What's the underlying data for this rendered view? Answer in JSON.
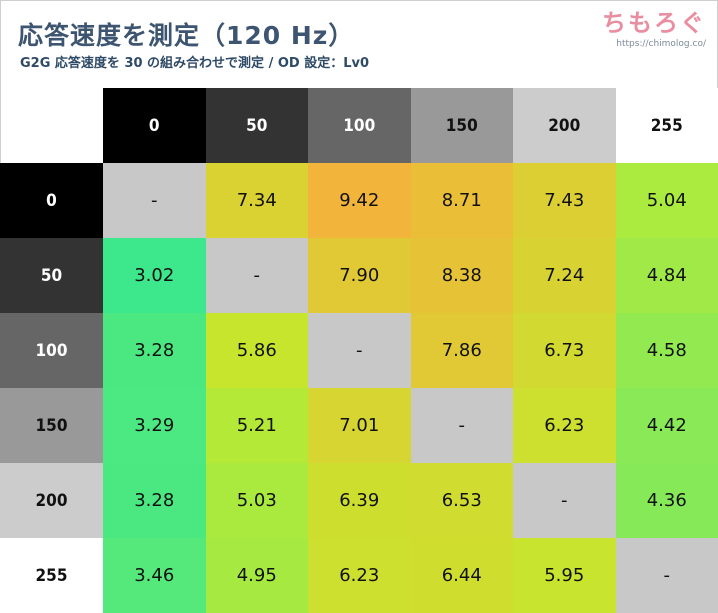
{
  "header": {
    "title": "応答速度を測定（120 Hz）",
    "subtitle": "G2G 応答速度を 30 の組み合わせで測定 / OD 設定：Lv0"
  },
  "brand": {
    "name": "ちもろぐ",
    "url": "https://chimolog.co/"
  },
  "colors": {
    "title": "#3d5570",
    "brand": "#e98ea0",
    "diagonal": "#c8c8c8",
    "header_shades": [
      "#000000",
      "#333333",
      "#666666",
      "#999999",
      "#cccccc",
      "#ffffff"
    ],
    "scale_low": "#3de88c",
    "scale_mid": "#c4ea2c",
    "scale_high": "#f2b43a"
  },
  "chart_data": {
    "type": "heatmap",
    "title": "応答速度を測定（120 Hz）",
    "subtitle": "G2G 応答速度を 30 の組み合わせで測定 / OD 設定：Lv0",
    "row_labels": [
      "0",
      "50",
      "100",
      "150",
      "200",
      "255"
    ],
    "col_labels": [
      "0",
      "50",
      "100",
      "150",
      "200",
      "255"
    ],
    "cells": [
      [
        "-",
        "7.34",
        "9.42",
        "8.71",
        "7.43",
        "5.04"
      ],
      [
        "3.02",
        "-",
        "7.90",
        "8.38",
        "7.24",
        "4.84"
      ],
      [
        "3.28",
        "5.86",
        "-",
        "7.86",
        "6.73",
        "4.58"
      ],
      [
        "3.29",
        "5.21",
        "7.01",
        "-",
        "6.23",
        "4.42"
      ],
      [
        "3.28",
        "5.03",
        "6.39",
        "6.53",
        "-",
        "4.36"
      ],
      [
        "3.46",
        "4.95",
        "6.23",
        "6.44",
        "5.95",
        "-"
      ]
    ]
  }
}
